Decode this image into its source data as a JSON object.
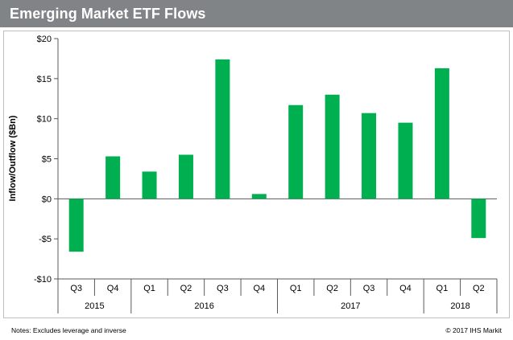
{
  "title": "Emerging Market ETF Flows",
  "note": "Notes: Excludes leverage and inverse",
  "copyright": "© 2017 IHS Markit",
  "colors": {
    "title_bar": "#808486",
    "bar": "#00b050",
    "axis": "#595959"
  },
  "chart_data": {
    "type": "bar",
    "title": "Emerging Market ETF Flows",
    "ylabel": "Inflow/Outflow ($Bn)",
    "xlabel": "",
    "ylim": [
      -10,
      20
    ],
    "yticks": [
      20,
      15,
      10,
      5,
      0,
      -5,
      -10
    ],
    "ytick_labels": [
      "$20",
      "$15",
      "$10",
      "$5",
      "$0",
      "-$5",
      "-$10"
    ],
    "grid": false,
    "categories": [
      "Q3",
      "Q4",
      "Q1",
      "Q2",
      "Q3",
      "Q4",
      "Q1",
      "Q2",
      "Q3",
      "Q4",
      "Q1",
      "Q2"
    ],
    "years": [
      {
        "label": "2015",
        "span": 2
      },
      {
        "label": "2016",
        "span": 4
      },
      {
        "label": "2017",
        "span": 4
      },
      {
        "label": "2018",
        "span": 2
      }
    ],
    "values": [
      -6.6,
      5.3,
      3.4,
      5.5,
      17.4,
      0.6,
      11.7,
      13.0,
      10.7,
      9.5,
      16.3,
      -4.9
    ]
  }
}
